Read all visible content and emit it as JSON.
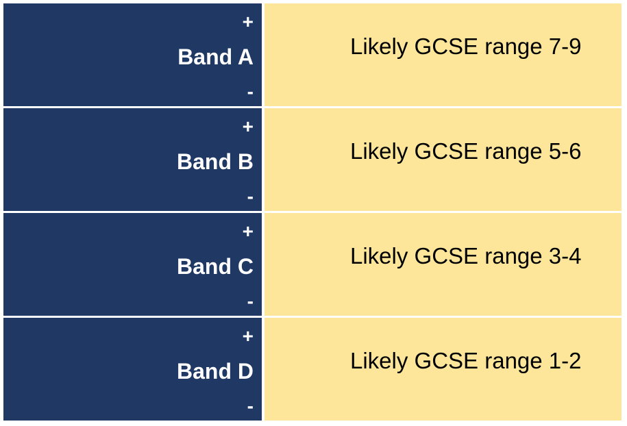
{
  "bands": [
    {
      "plus": "+",
      "name": "Band A",
      "minus": "-",
      "range": "Likely GCSE range 7-9"
    },
    {
      "plus": "+",
      "name": "Band B",
      "minus": "-",
      "range": "Likely GCSE range 5-6"
    },
    {
      "plus": "+",
      "name": "Band C",
      "minus": "-",
      "range": "Likely GCSE range 3-4"
    },
    {
      "plus": "+",
      "name": "Band D",
      "minus": "-",
      "range": "Likely GCSE range 1-2"
    }
  ],
  "colors": {
    "band_background": "#1f3864",
    "range_background": "#fde69a"
  }
}
